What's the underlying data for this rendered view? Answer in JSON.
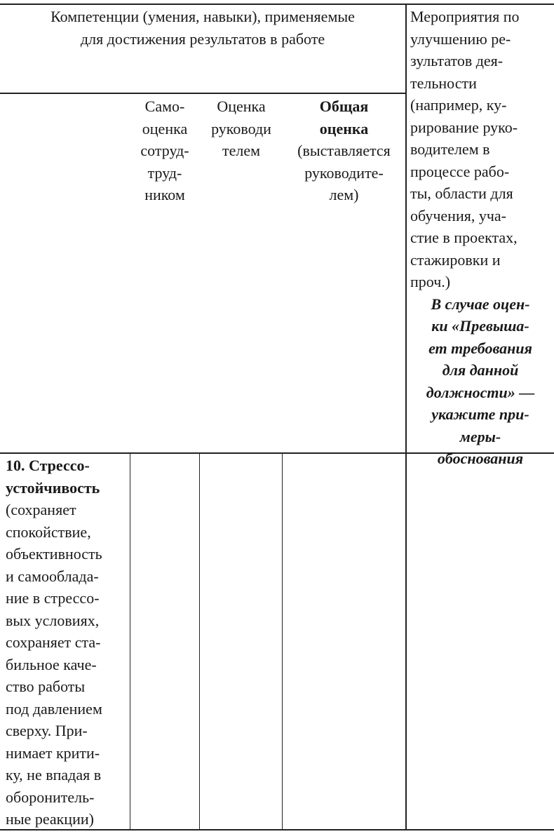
{
  "header": {
    "competencies_title": [
      "Компетенции (умения, навыки), применяемые",
      "для достижения результатов в работе"
    ],
    "measures_title": [
      "Мероприятия по",
      "улучшению ре-",
      "зультатов дея-",
      "тельности",
      "(например, ку-",
      "рирование руко-",
      "водителем в",
      "процессе рабо-",
      "ты, области для",
      "обучения, уча-",
      "стие в проектах,",
      "стажировки и",
      "проч.)"
    ],
    "measures_note": [
      "В случае оцен-",
      "ки «Превыша-",
      "ет требования",
      "для данной",
      "должности» —",
      "укажите при-",
      "меры-",
      "обоснования"
    ],
    "self_assessment": [
      "Само-",
      "оценка",
      "сотруд-",
      "труд-",
      "ником"
    ],
    "manager_assessment": [
      "Оценка",
      "руководи",
      "телем"
    ],
    "overall_bold": [
      "Общая",
      "оценка"
    ],
    "overall_note": [
      "(выставляется",
      "руководите-",
      "лем)"
    ]
  },
  "row": {
    "title": [
      "10. Стрессо-",
      "устойчивость"
    ],
    "description": [
      "(сохраняет",
      "спокойствие,",
      "объективность",
      "и самооблада-",
      "ние в стрессо-",
      "вых условиях,",
      "сохраняет ста-",
      "бильное каче-",
      "ство работы",
      "под давлением",
      "сверху. При-",
      "нимает крити-",
      "ку, не впадая в",
      "оборонитель-",
      "ные реакции)"
    ],
    "self_assessment": "",
    "manager_assessment": "",
    "overall": "",
    "measures": ""
  }
}
